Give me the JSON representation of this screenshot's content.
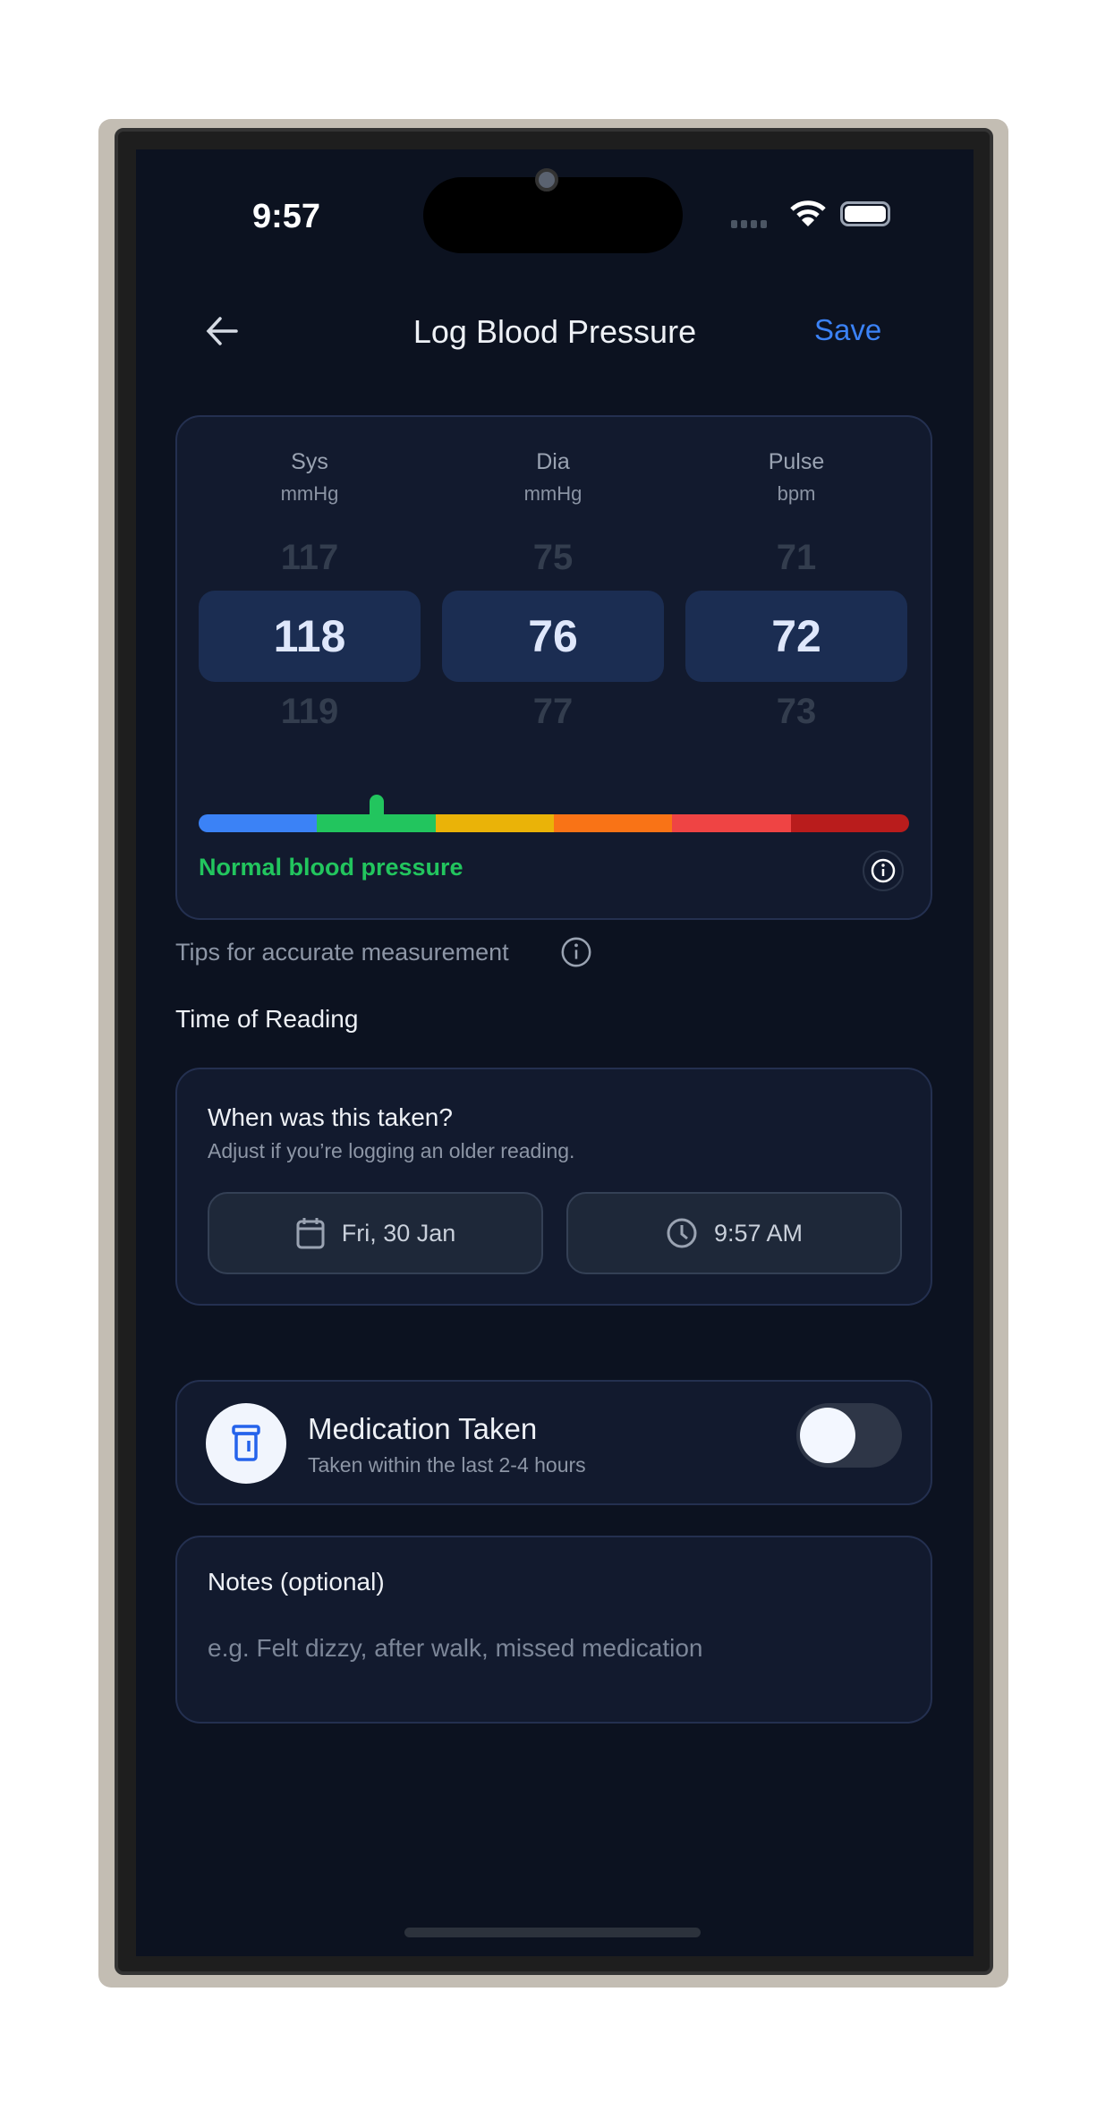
{
  "status_bar": {
    "time": "9:57"
  },
  "header": {
    "title": "Log Blood Pressure",
    "save_label": "Save",
    "back_icon": "arrow-left-icon"
  },
  "picker": {
    "columns": [
      {
        "label": "Sys",
        "unit": "mmHg",
        "prev": "117",
        "value": "118",
        "next": "119"
      },
      {
        "label": "Dia",
        "unit": "mmHg",
        "prev": "75",
        "value": "76",
        "next": "77"
      },
      {
        "label": "Pulse",
        "unit": "bpm",
        "prev": "71",
        "value": "72",
        "next": "73"
      }
    ]
  },
  "gauge": {
    "segment_colors": [
      "#3b82f6",
      "#22c55e",
      "#eab308",
      "#f97316",
      "#ef4444",
      "#b91c1c"
    ],
    "marker_fraction": 0.25,
    "status": "Normal blood pressure",
    "status_color": "#22c55e"
  },
  "tips": {
    "label": "Tips for accurate measurement"
  },
  "time_section": {
    "heading": "Time of Reading",
    "card_title": "When was this taken?",
    "card_subtitle": "Adjust if you’re logging an older reading.",
    "date": "Fri, 30 Jan",
    "time": "9:57 AM"
  },
  "medication": {
    "title": "Medication Taken",
    "subtitle": "Taken within the last 2-4 hours",
    "toggle_on": false
  },
  "notes": {
    "label": "Notes (optional)",
    "placeholder": "e.g. Felt dizzy, after walk, missed medication"
  },
  "colors": {
    "accent": "#3b82f6",
    "background": "#0c1220",
    "card": "#121a2e"
  }
}
